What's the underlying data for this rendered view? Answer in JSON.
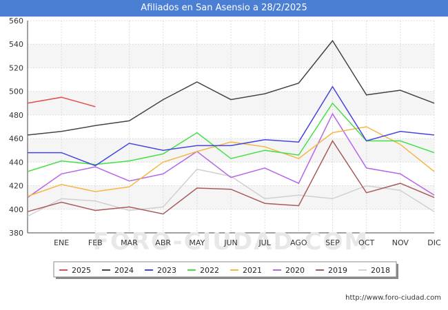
{
  "title": "Afiliados en San Asensio a 28/2/2025",
  "footer": "http://www.foro-ciudad.com",
  "watermark": "FORO-CIUDAD.COM",
  "chart_data": {
    "type": "line",
    "title": "Afiliados en San Asensio a 28/2/2025",
    "xlabel": "",
    "ylabel": "",
    "categories": [
      "",
      "ENE",
      "FEB",
      "MAR",
      "ABR",
      "MAY",
      "JUN",
      "JUL",
      "AGO",
      "SEP",
      "OCT",
      "NOV",
      "DIC"
    ],
    "ylim": [
      380,
      560
    ],
    "yticks": [
      380,
      400,
      420,
      440,
      460,
      480,
      500,
      520,
      540,
      560
    ],
    "grid": true,
    "legend_position": "bottom",
    "series": [
      {
        "name": "2025",
        "color": "#e84c4c",
        "values": [
          490,
          495,
          487,
          null,
          null,
          null,
          null,
          null,
          null,
          null,
          null,
          null,
          null
        ]
      },
      {
        "name": "2024",
        "color": "#444444",
        "values": [
          463,
          466,
          471,
          475,
          493,
          508,
          493,
          498,
          507,
          543,
          497,
          501,
          490
        ]
      },
      {
        "name": "2023",
        "color": "#4444e0",
        "values": [
          448,
          448,
          437,
          456,
          450,
          454,
          454,
          459,
          457,
          504,
          458,
          466,
          463
        ]
      },
      {
        "name": "2022",
        "color": "#44e044",
        "values": [
          432,
          441,
          438,
          441,
          447,
          465,
          443,
          450,
          446,
          490,
          458,
          458,
          448
        ]
      },
      {
        "name": "2021",
        "color": "#f5b642",
        "values": [
          411,
          421,
          415,
          419,
          440,
          449,
          457,
          453,
          443,
          465,
          470,
          455,
          432
        ]
      },
      {
        "name": "2020",
        "color": "#b566e8",
        "values": [
          410,
          430,
          436,
          424,
          430,
          449,
          427,
          435,
          422,
          481,
          435,
          430,
          412
        ]
      },
      {
        "name": "2019",
        "color": "#a85a5a",
        "values": [
          398,
          406,
          399,
          402,
          396,
          418,
          417,
          405,
          403,
          458,
          414,
          422,
          410
        ]
      },
      {
        "name": "2018",
        "color": "#d0d0d0",
        "values": [
          394,
          409,
          407,
          399,
          402,
          434,
          428,
          409,
          412,
          409,
          420,
          416,
          398
        ]
      }
    ]
  }
}
